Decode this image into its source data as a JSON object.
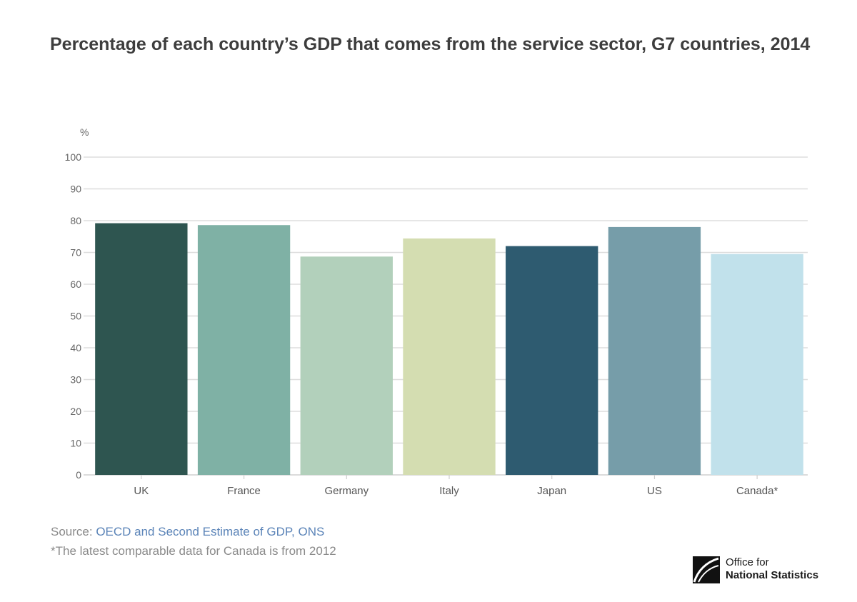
{
  "title": "Percentage of each country’s GDP that comes from the service sector, G7 countries, 2014",
  "chart_data": {
    "type": "bar",
    "ylabel": "%",
    "xlabel": "",
    "ylim": [
      0,
      100
    ],
    "yticks": [
      0,
      10,
      20,
      30,
      40,
      50,
      60,
      70,
      80,
      90,
      100
    ],
    "grid": true,
    "categories": [
      "UK",
      "France",
      "Germany",
      "Italy",
      "Japan",
      "US",
      "Canada*"
    ],
    "values": [
      79.2,
      78.6,
      68.7,
      74.4,
      72.0,
      78.0,
      69.5
    ],
    "colors": [
      "#2e5550",
      "#7fb1a5",
      "#b2d0bb",
      "#d4ddb1",
      "#2e5b70",
      "#769da9",
      "#c1e1eb"
    ]
  },
  "source": {
    "prefix": "Source: ",
    "text": "OECD and Second Estimate of GDP, ONS"
  },
  "footnote": "*The latest comparable data for Canada is from 2012",
  "logo": {
    "line1": "Office for",
    "line2": "National Statistics"
  }
}
